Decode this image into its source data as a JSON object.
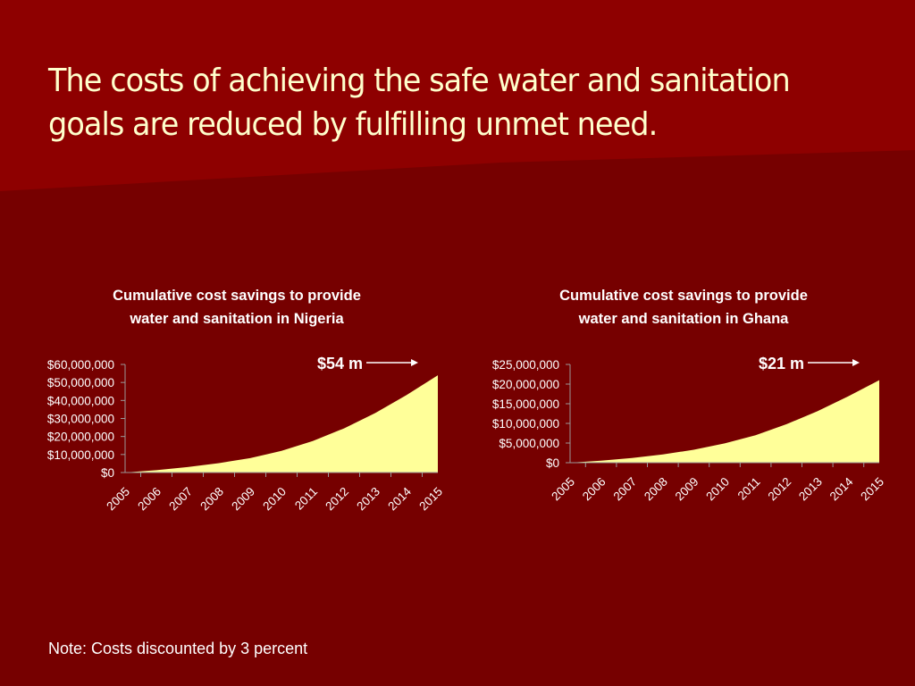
{
  "slide": {
    "title": "The costs of achieving the safe water and sanitation goals are reduced by fulfilling unmet need.",
    "note": "Note: Costs discounted by 3 percent"
  },
  "colors": {
    "background": "#760000",
    "background_light": "#8e0000",
    "title_text": "#ffffcc",
    "area_fill": "#ffff99",
    "text": "#ffffff"
  },
  "chart_data": [
    {
      "type": "area",
      "title": "Cumulative cost savings to provide water and sanitation in Nigeria",
      "title_lines": [
        "Cumulative cost savings to provide",
        "water and sanitation in Nigeria"
      ],
      "categories": [
        "2005",
        "2006",
        "2007",
        "2008",
        "2009",
        "2010",
        "2011",
        "2012",
        "2013",
        "2014",
        "2015"
      ],
      "values": [
        0,
        1300000,
        3000000,
        5200000,
        8000000,
        12000000,
        17500000,
        24500000,
        33000000,
        43000000,
        54000000
      ],
      "ylim": [
        0,
        60000000
      ],
      "yticks": [
        0,
        10000000,
        20000000,
        30000000,
        40000000,
        50000000,
        60000000
      ],
      "ytick_labels": [
        "$0",
        "$10,000,000",
        "$20,000,000",
        "$30,000,000",
        "$40,000,000",
        "$50,000,000",
        "$60,000,000"
      ],
      "annotation": "$54 m",
      "xlabel": "",
      "ylabel": "",
      "grid": false,
      "legend": "none"
    },
    {
      "type": "area",
      "title": "Cumulative cost savings to provide water and sanitation in Ghana",
      "title_lines": [
        "Cumulative cost savings to provide",
        "water and sanitation in Ghana"
      ],
      "categories": [
        "2005",
        "2006",
        "2007",
        "2008",
        "2009",
        "2010",
        "2011",
        "2012",
        "2013",
        "2014",
        "2015"
      ],
      "values": [
        0,
        500000,
        1200000,
        2100000,
        3300000,
        4900000,
        7000000,
        9800000,
        13100000,
        16900000,
        21000000
      ],
      "ylim": [
        0,
        25000000
      ],
      "yticks": [
        0,
        5000000,
        10000000,
        15000000,
        20000000,
        25000000
      ],
      "ytick_labels": [
        "$0",
        "$5,000,000",
        "$10,000,000",
        "$15,000,000",
        "$20,000,000",
        "$25,000,000"
      ],
      "annotation": "$21 m",
      "xlabel": "",
      "ylabel": "",
      "grid": false,
      "legend": "none"
    }
  ]
}
